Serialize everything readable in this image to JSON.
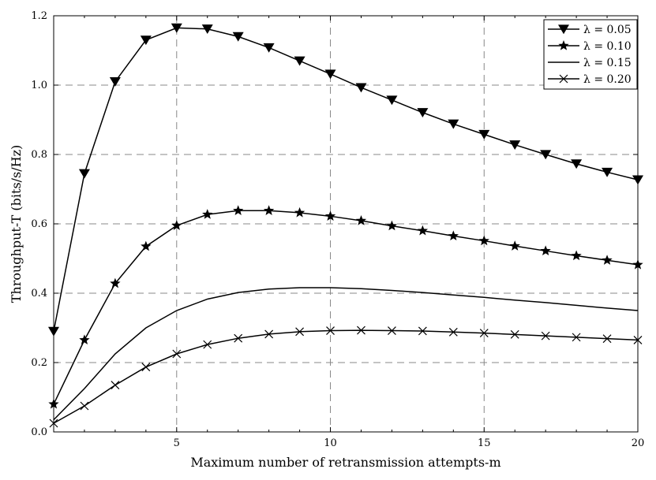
{
  "chart_data": {
    "type": "line",
    "xlabel": "Maximum number of retransmission attempts-m",
    "ylabel": "Throughput-T (bits/s/Hz)",
    "xlim": [
      1,
      20
    ],
    "ylim": [
      0,
      1.2
    ],
    "x_ticks": [
      5,
      10,
      15,
      20
    ],
    "y_ticks": [
      0.0,
      0.2,
      0.4,
      0.6,
      0.8,
      1.0,
      1.2
    ],
    "x_tick_labels": [
      "5",
      "10",
      "15",
      "20"
    ],
    "y_tick_labels": [
      "0.0",
      "0.2",
      "0.4",
      "0.6",
      "0.8",
      "1.0",
      "1.2"
    ],
    "grid": true,
    "legend_position": "top-right",
    "x": [
      1,
      2,
      3,
      4,
      5,
      6,
      7,
      8,
      9,
      10,
      11,
      12,
      13,
      14,
      15,
      16,
      17,
      18,
      19,
      20
    ],
    "series": [
      {
        "name": "λ = 0.05",
        "marker": "triangle-down",
        "color": "#000000",
        "values": [
          0.29,
          0.745,
          1.01,
          1.13,
          1.165,
          1.162,
          1.14,
          1.108,
          1.07,
          1.032,
          0.993,
          0.957,
          0.921,
          0.888,
          0.858,
          0.828,
          0.8,
          0.773,
          0.749,
          0.727
        ]
      },
      {
        "name": "λ = 0.10",
        "marker": "star",
        "color": "#000000",
        "values": [
          0.08,
          0.265,
          0.428,
          0.535,
          0.595,
          0.627,
          0.638,
          0.638,
          0.632,
          0.622,
          0.609,
          0.594,
          0.58,
          0.565,
          0.551,
          0.536,
          0.522,
          0.508,
          0.495,
          0.482
        ]
      },
      {
        "name": "λ = 0.15",
        "marker": "none",
        "color": "#000000",
        "values": [
          0.035,
          0.125,
          0.225,
          0.3,
          0.35,
          0.383,
          0.402,
          0.412,
          0.416,
          0.416,
          0.413,
          0.408,
          0.402,
          0.395,
          0.388,
          0.38,
          0.373,
          0.365,
          0.357,
          0.35
        ]
      },
      {
        "name": "λ = 0.20",
        "marker": "x",
        "color": "#000000",
        "values": [
          0.025,
          0.075,
          0.135,
          0.187,
          0.225,
          0.252,
          0.27,
          0.282,
          0.289,
          0.292,
          0.293,
          0.292,
          0.291,
          0.288,
          0.285,
          0.281,
          0.277,
          0.273,
          0.269,
          0.265
        ]
      }
    ]
  }
}
